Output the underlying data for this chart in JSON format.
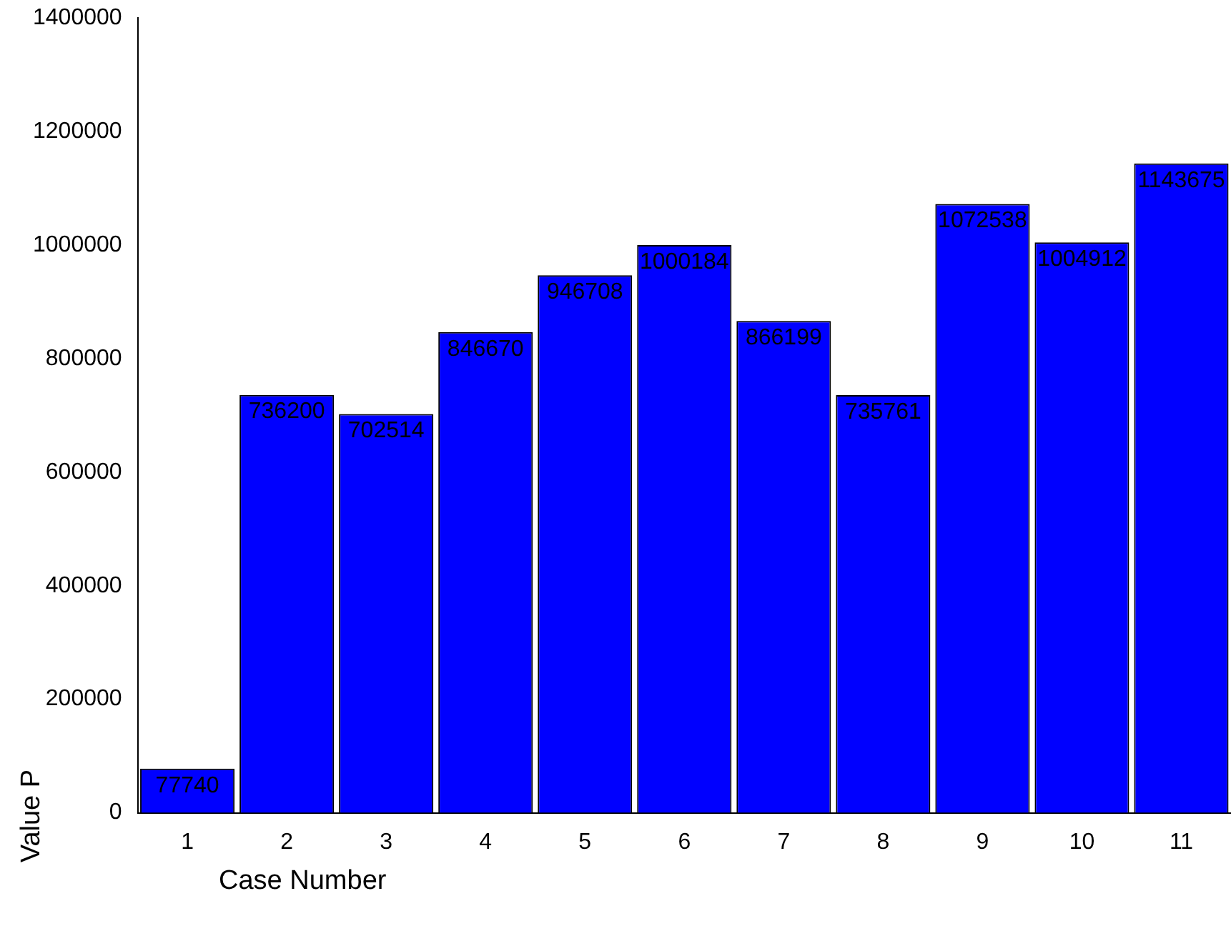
{
  "chart_data": {
    "type": "bar",
    "xlabel": "Case Number",
    "ylabel": "Value P",
    "categories": [
      "1",
      "2",
      "3",
      "4",
      "5",
      "6",
      "7",
      "8",
      "9",
      "10",
      "11"
    ],
    "values": [
      77740,
      736200,
      702514,
      846670,
      946708,
      1000184,
      866199,
      735761,
      1072538,
      1004912,
      1143675
    ],
    "color": "#0000ff",
    "ylim": [
      0,
      1400000
    ],
    "yticks": [
      0,
      200000,
      400000,
      600000,
      800000,
      1000000,
      1200000,
      1400000
    ],
    "grid": false,
    "legend": false,
    "data_labels": true
  }
}
